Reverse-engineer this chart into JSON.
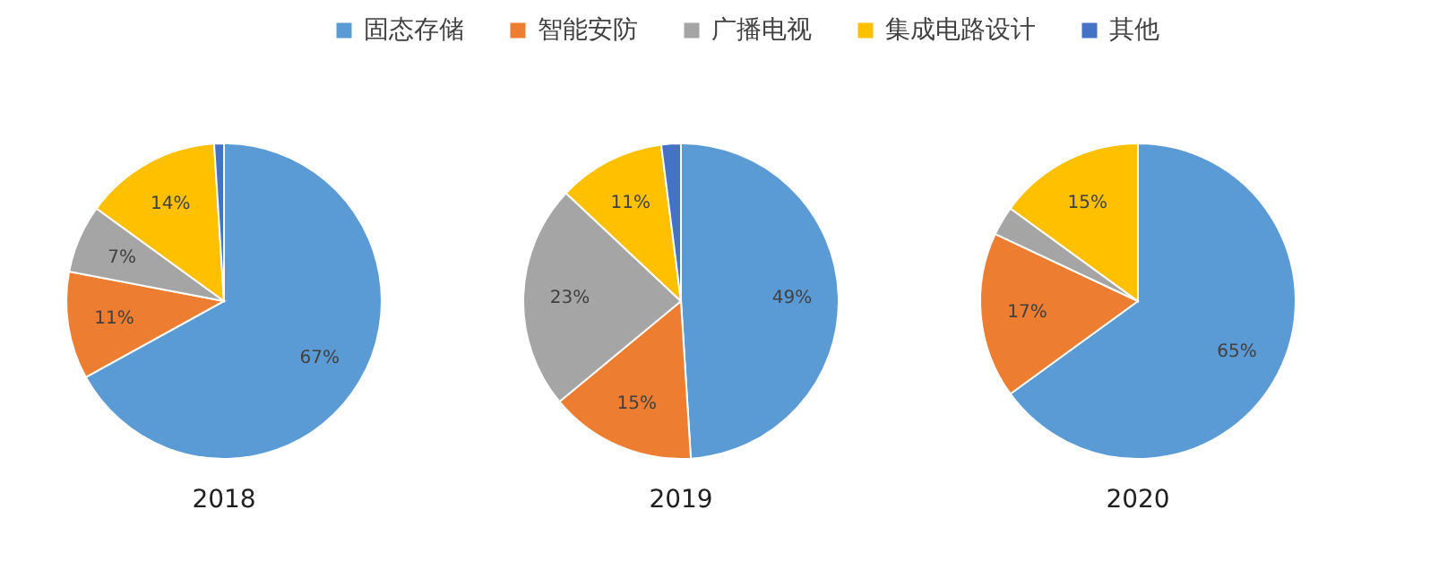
{
  "chart_data": [
    {
      "type": "pie",
      "title": "2018",
      "categories": [
        null,
        null,
        null,
        null,
        null
      ],
      "values": [
        67,
        11,
        7,
        14,
        1
      ],
      "colors": [
        "#5b9bd5",
        "#ed7d31",
        "#a5a5a5",
        "#ffc000",
        "#4472c4"
      ],
      "value_labels": [
        "67%",
        "11%",
        "7%",
        "14%",
        null
      ]
    },
    {
      "type": "pie",
      "title": "2019",
      "legend": "top",
      "categories": [
        "固态存储",
        "智能安防",
        "广播电视",
        "集成电路设计",
        "其他"
      ],
      "values": [
        49,
        15,
        23,
        11,
        2
      ],
      "colors": [
        "#5b9bd5",
        "#ed7d31",
        "#a5a5a5",
        "#ffc000",
        "#4472c4"
      ],
      "value_labels": [
        "49%",
        "15%",
        "23%",
        "11%",
        null
      ]
    },
    {
      "type": "pie",
      "title": "2020",
      "categories": [
        null,
        null,
        null,
        null,
        null
      ],
      "values": [
        65,
        17,
        3,
        15,
        0
      ],
      "colors": [
        "#5b9bd5",
        "#ed7d31",
        "#a5a5a5",
        "#ffc000",
        "#4472c4"
      ],
      "value_labels": [
        "65%",
        "17%",
        null,
        "15%",
        null
      ]
    }
  ]
}
